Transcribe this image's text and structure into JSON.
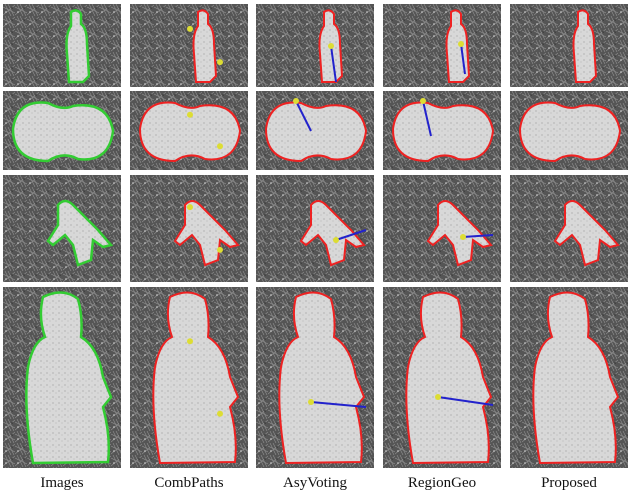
{
  "columns": [
    "Images",
    "CombPaths",
    "AsyVoting",
    "RegionGeo",
    "Proposed"
  ]
}
